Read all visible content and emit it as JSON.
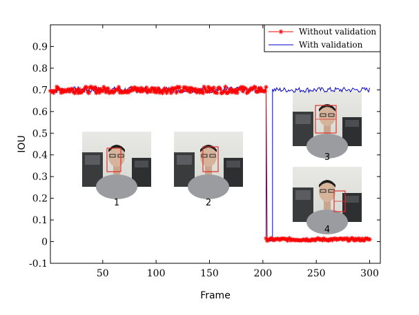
{
  "chart_data": {
    "type": "line",
    "xlabel": "Frame",
    "ylabel": "IOU",
    "xlim": [
      1,
      310
    ],
    "ylim": [
      -0.1,
      1.0
    ],
    "x_ticks": [
      50,
      100,
      150,
      200,
      250,
      300
    ],
    "y_ticks": [
      -0.1,
      0,
      0.1,
      0.2,
      0.3,
      0.4,
      0.5,
      0.6,
      0.7,
      0.8,
      0.9
    ],
    "y_tick_labels": [
      "-0.1",
      "0",
      "0.1",
      "0.2",
      "0.3",
      "0.4",
      "0.5",
      "0.6",
      "0.7",
      "0.8",
      "0.9"
    ],
    "x_tick_labels": [
      "50",
      "100",
      "150",
      "200",
      "250",
      "300"
    ],
    "grid": false,
    "legend_position": "top-right",
    "series": [
      {
        "name": "Without validation",
        "color": "#ff0000",
        "marker": "asterisk",
        "segments": [
          {
            "x_range": [
              1,
              203
            ],
            "mean": 0.7,
            "jitter": 0.015
          },
          {
            "x_range": [
              203,
              300
            ],
            "mean": 0.01,
            "jitter": 0.006
          }
        ]
      },
      {
        "name": "With validation",
        "color": "#0000cc",
        "marker": "none",
        "segments": [
          {
            "x_range": [
              1,
              203
            ],
            "mean": 0.7,
            "jitter": 0.015
          },
          {
            "x_range": [
              204,
              209
            ],
            "mean": 0.005,
            "jitter": 0.002
          },
          {
            "x_range": [
              209,
              300
            ],
            "mean": 0.7,
            "jitter": 0.012
          }
        ]
      }
    ],
    "inset_captions": [
      "1",
      "2",
      "3",
      "4"
    ]
  }
}
